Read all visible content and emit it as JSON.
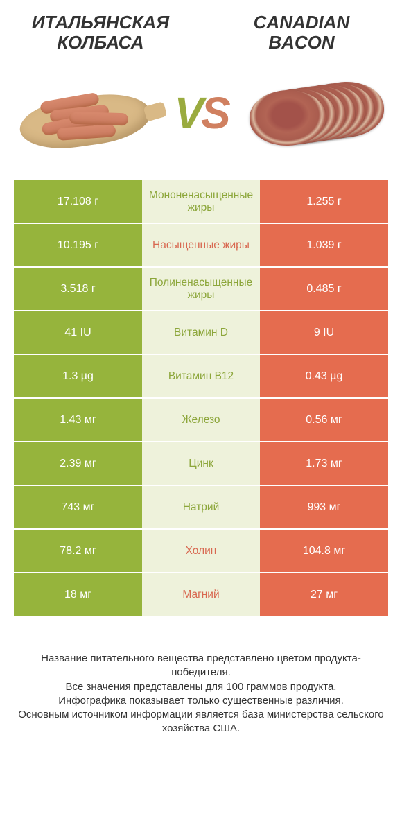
{
  "colors": {
    "green_bg": "#96b43c",
    "orange_bg": "#e56c4f",
    "mid_bg": "#eef2db",
    "green_txt": "#8ca63a",
    "orange_txt": "#d86850"
  },
  "header": {
    "left_title_line1": "ИТАЛЬЯНСКАЯ",
    "left_title_line2": "КОЛБАСА",
    "right_title_line1": "CANADIAN",
    "right_title_line2": "BACON",
    "vs_v": "V",
    "vs_s": "S"
  },
  "rows": [
    {
      "left": "17.108 г",
      "label": "Мононенасыщенные жиры",
      "right": "1.255 г",
      "winner": "left"
    },
    {
      "left": "10.195 г",
      "label": "Насыщенные жиры",
      "right": "1.039 г",
      "winner": "right"
    },
    {
      "left": "3.518 г",
      "label": "Полиненасыщенные жиры",
      "right": "0.485 г",
      "winner": "left"
    },
    {
      "left": "41 IU",
      "label": "Витамин D",
      "right": "9 IU",
      "winner": "left"
    },
    {
      "left": "1.3 µg",
      "label": "Витамин B12",
      "right": "0.43 µg",
      "winner": "left"
    },
    {
      "left": "1.43 мг",
      "label": "Железо",
      "right": "0.56 мг",
      "winner": "left"
    },
    {
      "left": "2.39 мг",
      "label": "Цинк",
      "right": "1.73 мг",
      "winner": "left"
    },
    {
      "left": "743 мг",
      "label": "Натрий",
      "right": "993 мг",
      "winner": "left"
    },
    {
      "left": "78.2 мг",
      "label": "Холин",
      "right": "104.8 мг",
      "winner": "right"
    },
    {
      "left": "18 мг",
      "label": "Магний",
      "right": "27 мг",
      "winner": "right"
    }
  ],
  "footer": {
    "line1": "Название питательного вещества представлено цветом продукта-победителя.",
    "line2": "Все значения представлены для 100 граммов продукта.",
    "line3": "Инфографика показывает только существенные различия.",
    "line4": "Основным источником информации является база министерства сельского хозяйства США."
  }
}
